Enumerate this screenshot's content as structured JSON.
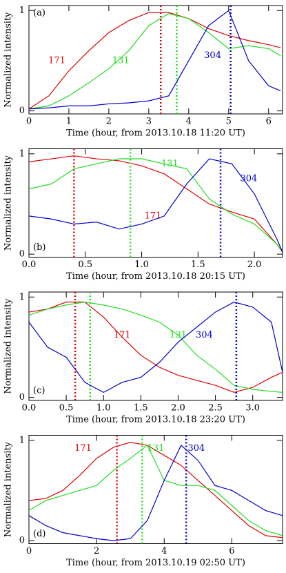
{
  "chart_data": [
    {
      "type": "line",
      "panel": "(a)",
      "xlabel": "Time (hour, from 2013.10.18 11:20 UT)",
      "ylabel": "Normalized intensity",
      "xlim": [
        0,
        6.35
      ],
      "xticks": [
        0,
        1,
        2,
        3,
        4,
        5,
        6
      ],
      "ylim": [
        -0.03,
        1.05
      ],
      "yticks": [
        0,
        1
      ],
      "x": [
        0,
        0.5,
        1,
        1.5,
        2,
        2.5,
        3,
        3.5,
        4,
        4.5,
        5,
        5.5,
        6,
        6.3
      ],
      "series": [
        {
          "name": "171",
          "color": "#e00000",
          "peak": 3.3,
          "values": [
            0.02,
            0.15,
            0.4,
            0.6,
            0.78,
            0.9,
            0.98,
            0.98,
            0.92,
            0.82,
            0.75,
            0.7,
            0.66,
            0.63
          ]
        },
        {
          "name": "131",
          "color": "#22dd22",
          "peak": 3.7,
          "values": [
            0.02,
            0.05,
            0.15,
            0.28,
            0.42,
            0.6,
            0.85,
            0.97,
            0.92,
            0.78,
            0.62,
            0.65,
            0.62,
            0.55
          ]
        },
        {
          "name": "304",
          "color": "#0000cc",
          "peak": 5.05,
          "values": [
            0.02,
            0.03,
            0.05,
            0.05,
            0.07,
            0.08,
            0.1,
            0.15,
            0.5,
            0.85,
            1.0,
            0.5,
            0.25,
            0.2
          ]
        }
      ]
    },
    {
      "type": "line",
      "panel": "(b)",
      "xlabel": "Time (hour, from 2013.10.18 20:15 UT)",
      "ylabel": "Normalized intensity",
      "xlim": [
        0,
        2.25
      ],
      "xticks": [
        {
          "value": 0,
          "label": "0.0"
        },
        0.5,
        {
          "value": 1,
          "label": "1.0"
        },
        1.5,
        {
          "value": 2,
          "label": "2.0"
        }
      ],
      "ylim": [
        -0.03,
        1.05
      ],
      "yticks": [
        0,
        1
      ],
      "x": [
        0,
        0.2,
        0.4,
        0.6,
        0.8,
        1.0,
        1.2,
        1.4,
        1.6,
        1.8,
        2.0,
        2.2,
        2.25
      ],
      "series": [
        {
          "name": "171",
          "color": "#e00000",
          "peak": 0.4,
          "values": [
            0.92,
            0.95,
            0.98,
            0.95,
            0.93,
            0.88,
            0.8,
            0.65,
            0.5,
            0.42,
            0.35,
            0.1,
            0.02
          ]
        },
        {
          "name": "131",
          "color": "#22dd22",
          "peak": 0.9,
          "values": [
            0.65,
            0.7,
            0.85,
            0.9,
            0.95,
            0.95,
            0.9,
            0.85,
            0.55,
            0.4,
            0.3,
            0.1,
            0.03
          ]
        },
        {
          "name": "304",
          "color": "#0000cc",
          "peak": 1.7,
          "values": [
            0.38,
            0.35,
            0.3,
            0.32,
            0.25,
            0.3,
            0.38,
            0.7,
            0.95,
            0.9,
            0.6,
            0.15,
            0.02
          ]
        }
      ]
    },
    {
      "type": "line",
      "panel": "(c)",
      "xlabel": "Time (hour, from 2013.10.18 23:20 UT)",
      "ylabel": "Normalized intensity",
      "xlim": [
        0,
        3.4
      ],
      "xticks": [
        {
          "value": 0,
          "label": "0.0"
        },
        0.5,
        {
          "value": 1,
          "label": "1.0"
        },
        1.5,
        {
          "value": 2,
          "label": "2.0"
        },
        2.5,
        {
          "value": 3,
          "label": "3.0"
        }
      ],
      "ylim": [
        -0.03,
        1.05
      ],
      "yticks": [
        0,
        1
      ],
      "x": [
        0,
        0.25,
        0.5,
        0.75,
        1.0,
        1.25,
        1.5,
        1.75,
        2.0,
        2.25,
        2.5,
        2.75,
        3.0,
        3.25,
        3.4
      ],
      "series": [
        {
          "name": "171",
          "color": "#e00000",
          "peak": 0.62,
          "values": [
            0.85,
            0.88,
            0.95,
            0.95,
            0.8,
            0.6,
            0.42,
            0.3,
            0.22,
            0.17,
            0.12,
            0.05,
            0.1,
            0.2,
            0.25
          ]
        },
        {
          "name": "131",
          "color": "#22dd22",
          "peak": 0.82,
          "values": [
            0.82,
            0.88,
            0.92,
            0.95,
            0.92,
            0.88,
            0.82,
            0.75,
            0.62,
            0.42,
            0.28,
            0.12,
            0.08,
            0.06,
            0.05
          ]
        },
        {
          "name": "304",
          "color": "#0000cc",
          "peak": 2.78,
          "values": [
            0.75,
            0.5,
            0.4,
            0.15,
            0.05,
            0.15,
            0.2,
            0.35,
            0.55,
            0.7,
            0.85,
            0.95,
            0.9,
            0.75,
            0.25
          ]
        }
      ]
    },
    {
      "type": "line",
      "panel": "(d)",
      "xlabel": "Time (hour, from 2013.10.19 02:50 UT)",
      "ylabel": "Normalized intensity",
      "xlim": [
        0,
        7.5
      ],
      "xticks": [
        0,
        2,
        4,
        6
      ],
      "ylim": [
        -0.03,
        1.05
      ],
      "yticks": [
        0,
        1
      ],
      "x": [
        0,
        0.5,
        1,
        1.5,
        2,
        2.5,
        3,
        3.5,
        4,
        4.5,
        5,
        5.5,
        6,
        6.5,
        7,
        7.5
      ],
      "series": [
        {
          "name": "171",
          "color": "#e00000",
          "peak": 2.6,
          "values": [
            0.4,
            0.42,
            0.5,
            0.65,
            0.82,
            0.93,
            0.98,
            0.95,
            0.85,
            0.75,
            0.6,
            0.45,
            0.3,
            0.15,
            0.05,
            0.03
          ]
        },
        {
          "name": "131",
          "color": "#22dd22",
          "peak": 3.35,
          "values": [
            0.3,
            0.4,
            0.45,
            0.5,
            0.55,
            0.7,
            0.82,
            0.95,
            0.6,
            0.55,
            0.55,
            0.5,
            0.35,
            0.2,
            0.1,
            0.05
          ]
        },
        {
          "name": "304",
          "color": "#0000cc",
          "peak": 4.65,
          "values": [
            0.25,
            0.15,
            0.08,
            0.05,
            0.02,
            0.0,
            0.02,
            0.2,
            0.6,
            0.95,
            0.8,
            0.55,
            0.5,
            0.4,
            0.3,
            0.25
          ]
        }
      ]
    }
  ]
}
